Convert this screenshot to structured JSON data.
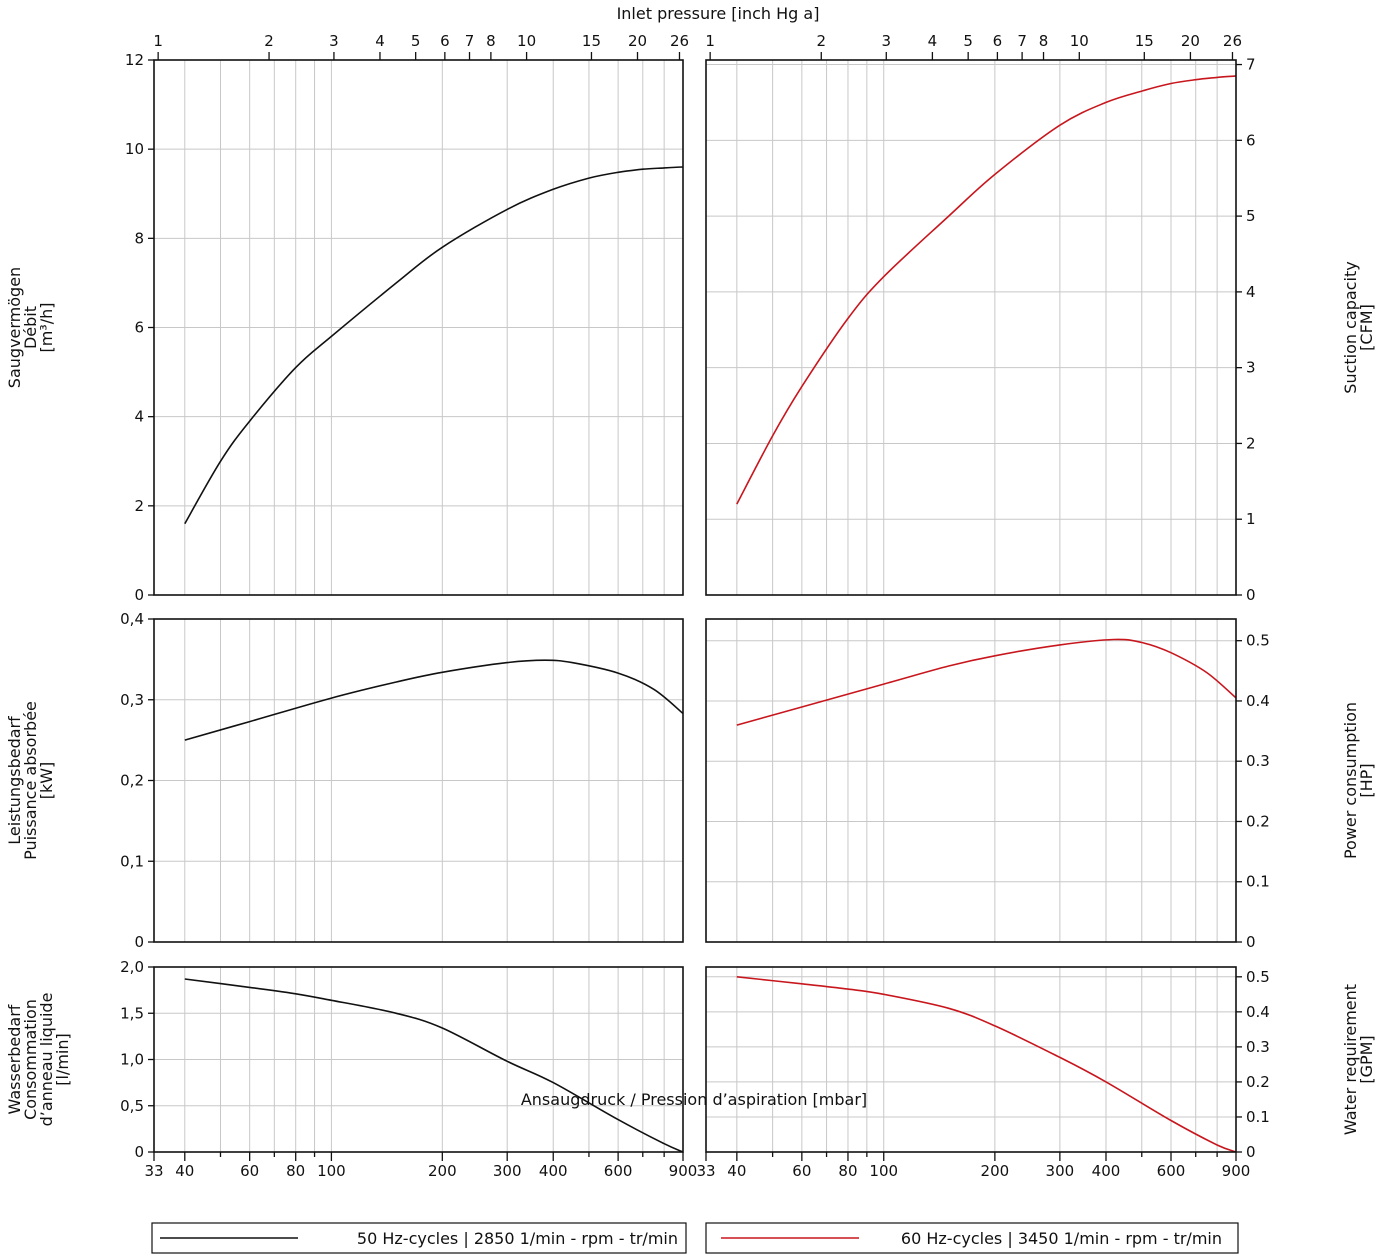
{
  "chart_data": {
    "type": "line",
    "x_scale": "log",
    "top_axis_label": "Inlet pressure [inch Hg a]",
    "top_ticks": [
      "1",
      "2",
      "3",
      "4",
      "5",
      "6",
      "7",
      "8",
      "10",
      "15",
      "20",
      "26"
    ],
    "bottom_axis_label": "Ansaugdruck / Pression d’aspiration [mbar]",
    "bottom_ticks": [
      "33",
      "40",
      "60",
      "80",
      "100",
      "200",
      "300",
      "400",
      "600",
      "900"
    ],
    "xlim_mbar": [
      33,
      900
    ],
    "colors": {
      "series_50hz": "#111111",
      "series_60hz": "#c8161d",
      "grid": "#c8c8c8"
    },
    "legend": [
      {
        "label": "50 Hz-cycles | 2850 1/min - rpm - tr/min",
        "color": "#111111"
      },
      {
        "label": "60 Hz-cycles | 3450 1/min - rpm - tr/min",
        "color": "#c8161d"
      }
    ],
    "panels": [
      {
        "id": "suction",
        "left_label_lines": [
          "Saugvermögen",
          "Débit",
          "[m³/h]"
        ],
        "right_label_lines": [
          "Suction capacity",
          "[CFM]"
        ],
        "left_ylim": [
          0,
          12
        ],
        "left_ticks": [
          "0",
          "2",
          "4",
          "6",
          "8",
          "10",
          "12"
        ],
        "right_ylim": [
          0,
          7.06
        ],
        "right_ticks": [
          "0",
          "1",
          "2",
          "3",
          "4",
          "5",
          "6",
          "7"
        ],
        "series_50hz": {
          "unit": "m³/h",
          "x": [
            40,
            50,
            60,
            80,
            100,
            150,
            200,
            300,
            400,
            500,
            600,
            700,
            800,
            900
          ],
          "y": [
            1.6,
            3.0,
            3.9,
            5.1,
            5.8,
            7.0,
            7.8,
            8.65,
            9.1,
            9.35,
            9.48,
            9.55,
            9.58,
            9.6
          ]
        },
        "series_60hz": {
          "unit": "CFM",
          "x": [
            40,
            50,
            60,
            80,
            100,
            150,
            200,
            300,
            400,
            500,
            600,
            700,
            800,
            900
          ],
          "y": [
            1.2,
            2.1,
            2.75,
            3.65,
            4.2,
            5.0,
            5.55,
            6.2,
            6.5,
            6.65,
            6.75,
            6.8,
            6.83,
            6.85
          ]
        }
      },
      {
        "id": "power",
        "left_label_lines": [
          "Leistungsbedarf",
          "Puissance absorbée",
          "[kW]"
        ],
        "right_label_lines": [
          "Power consumption",
          "[HP]"
        ],
        "left_ylim": [
          0,
          0.4
        ],
        "left_ticks": [
          "0",
          "0,1",
          "0,2",
          "0,3",
          "0,4"
        ],
        "right_ylim": [
          0,
          0.536
        ],
        "right_ticks": [
          "0",
          "0.1",
          "0.2",
          "0.3",
          "0.4",
          "0.5"
        ],
        "series_50hz": {
          "unit": "kW",
          "x": [
            40,
            60,
            100,
            150,
            200,
            300,
            380,
            450,
            600,
            750,
            900
          ],
          "y": [
            0.25,
            0.273,
            0.302,
            0.322,
            0.334,
            0.346,
            0.349,
            0.346,
            0.333,
            0.313,
            0.283
          ]
        },
        "series_60hz": {
          "unit": "HP",
          "x": [
            40,
            60,
            100,
            150,
            200,
            300,
            420,
            500,
            600,
            750,
            900
          ],
          "y": [
            0.36,
            0.39,
            0.428,
            0.458,
            0.475,
            0.493,
            0.502,
            0.497,
            0.48,
            0.447,
            0.405
          ]
        }
      },
      {
        "id": "water",
        "left_label_lines": [
          "Wasserbedarf",
          "Consommation",
          "d’anneau  liquide",
          "[l/min]"
        ],
        "right_label_lines": [
          "Water requirement",
          "[GPM]"
        ],
        "left_ylim": [
          0,
          2.0
        ],
        "left_ticks": [
          "0",
          "0,5",
          "1,0",
          "1,5",
          "2,0"
        ],
        "right_ylim": [
          0,
          0.528
        ],
        "right_ticks": [
          "0",
          "0.1",
          "0.2",
          "0.3",
          "0.4",
          "0.5"
        ],
        "series_50hz": {
          "unit": "l/min",
          "x": [
            40,
            60,
            80,
            100,
            150,
            200,
            300,
            400,
            600,
            800,
            900
          ],
          "y": [
            1.87,
            1.78,
            1.71,
            1.64,
            1.5,
            1.34,
            0.98,
            0.75,
            0.35,
            0.09,
            0.0
          ]
        },
        "series_60hz": {
          "unit": "GPM",
          "x": [
            40,
            60,
            80,
            100,
            150,
            200,
            300,
            400,
            600,
            800,
            900
          ],
          "y": [
            0.5,
            0.48,
            0.465,
            0.45,
            0.41,
            0.36,
            0.27,
            0.2,
            0.09,
            0.02,
            0.0
          ]
        }
      }
    ]
  }
}
